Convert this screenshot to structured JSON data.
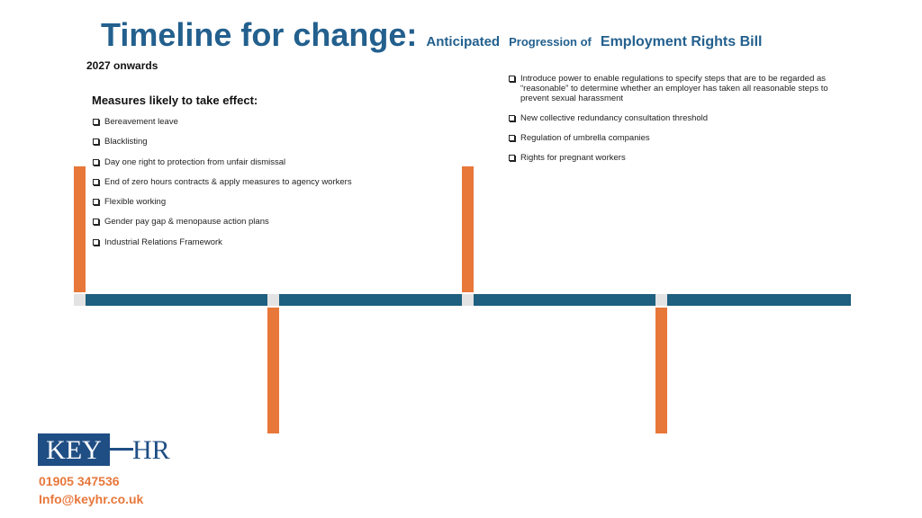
{
  "header": {
    "title": "Timeline for change:",
    "subtitle": [
      "Anticipated",
      "Progression of",
      "Employment Rights Bill"
    ],
    "period": "2027 onwards"
  },
  "left": {
    "heading": "Measures likely to take effect:",
    "items": [
      "Bereavement leave",
      "Blacklisting",
      "Day one right to protection from unfair dismissal",
      "End of zero hours contracts & apply measures to agency workers",
      "Flexible working",
      "Gender pay gap & menopause action plans",
      "Industrial Relations Framework"
    ]
  },
  "right": {
    "items": [
      "Introduce power to enable regulations to specify steps that are to be regarded as “reasonable” to determine whether an employer has taken all reasonable steps to prevent sexual harassment",
      "New collective redundancy consultation threshold",
      "Regulation of umbrella companies",
      "Rights for pregnant workers"
    ]
  },
  "logo": {
    "left": "KEY",
    "right": "HR"
  },
  "contact": {
    "phone": "01905 347536",
    "email": "Info@keyhr.co.uk"
  }
}
